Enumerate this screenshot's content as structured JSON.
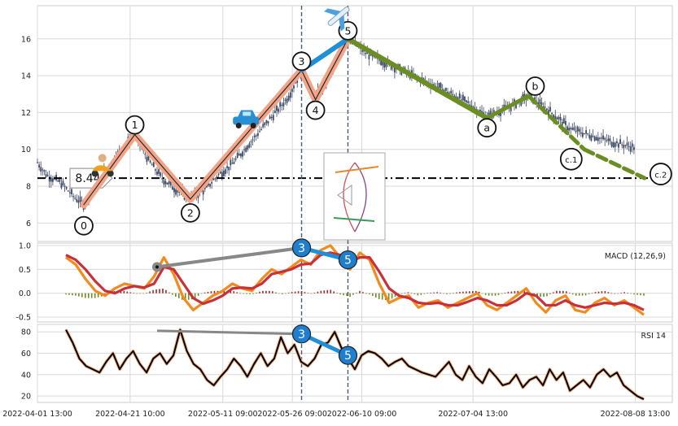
{
  "chart_data": [
    {
      "type": "candlestick",
      "panel": "price",
      "ylim": [
        5,
        17.8
      ],
      "yticks": [
        6,
        8,
        10,
        12,
        14,
        16
      ],
      "price_line": {
        "value": 8.44,
        "label": "8.44"
      },
      "close_series": [
        {
          "date": "2022-04-01",
          "close": 9.3
        },
        {
          "date": "2022-04-03",
          "close": 8.6
        },
        {
          "date": "2022-04-06",
          "close": 8.2
        },
        {
          "date": "2022-04-09",
          "close": 7.4
        },
        {
          "date": "2022-04-11",
          "close": 7.0
        },
        {
          "date": "2022-04-14",
          "close": 8.3
        },
        {
          "date": "2022-04-17",
          "close": 9.3
        },
        {
          "date": "2022-04-20",
          "close": 10.3
        },
        {
          "date": "2022-04-22",
          "close": 10.8
        },
        {
          "date": "2022-04-25",
          "close": 9.4
        },
        {
          "date": "2022-04-28",
          "close": 8.4
        },
        {
          "date": "2022-05-01",
          "close": 7.8
        },
        {
          "date": "2022-05-04",
          "close": 7.3
        },
        {
          "date": "2022-05-07",
          "close": 7.8
        },
        {
          "date": "2022-05-10",
          "close": 8.6
        },
        {
          "date": "2022-05-13",
          "close": 9.2
        },
        {
          "date": "2022-05-16",
          "close": 10.1
        },
        {
          "date": "2022-05-19",
          "close": 11.0
        },
        {
          "date": "2022-05-22",
          "close": 11.9
        },
        {
          "date": "2022-05-25",
          "close": 12.8
        },
        {
          "date": "2022-05-28",
          "close": 14.3
        },
        {
          "date": "2022-05-31",
          "close": 12.8
        },
        {
          "date": "2022-06-04",
          "close": 14.4
        },
        {
          "date": "2022-06-07",
          "close": 16.0
        },
        {
          "date": "2022-06-11",
          "close": 15.2
        },
        {
          "date": "2022-06-16",
          "close": 14.6
        },
        {
          "date": "2022-06-22",
          "close": 13.9
        },
        {
          "date": "2022-06-28",
          "close": 13.2
        },
        {
          "date": "2022-07-03",
          "close": 12.5
        },
        {
          "date": "2022-07-07",
          "close": 11.8
        },
        {
          "date": "2022-07-12",
          "close": 12.3
        },
        {
          "date": "2022-07-16",
          "close": 12.9
        },
        {
          "date": "2022-07-20",
          "close": 12.2
        },
        {
          "date": "2022-07-25",
          "close": 11.1
        },
        {
          "date": "2022-07-29",
          "close": 10.8
        },
        {
          "date": "2022-08-03",
          "close": 10.4
        },
        {
          "date": "2022-08-08",
          "close": 10.1
        }
      ],
      "wave_points": [
        {
          "label": "0",
          "date": "2022-04-11",
          "price": 7.0
        },
        {
          "label": "1",
          "date": "2022-04-22",
          "price": 10.8
        },
        {
          "label": "2",
          "date": "2022-05-04",
          "price": 7.3
        },
        {
          "label": "3",
          "date": "2022-05-28",
          "price": 14.3
        },
        {
          "label": "4",
          "date": "2022-05-31",
          "price": 12.7
        },
        {
          "label": "5",
          "date": "2022-06-07",
          "price": 16.0
        },
        {
          "label": "a",
          "date": "2022-07-07",
          "price": 11.7
        },
        {
          "label": "b",
          "date": "2022-07-16",
          "price": 12.9
        },
        {
          "label": "c.1",
          "date": "2022-07-28",
          "price": 10.0
        },
        {
          "label": "c.2",
          "date": "2022-08-10",
          "price": 8.44
        }
      ],
      "vertical_markers": [
        "2022-05-28",
        "2022-06-07"
      ],
      "icons": [
        "scooter-icon",
        "car-icon",
        "airplane-icon"
      ]
    },
    {
      "type": "line",
      "panel": "macd",
      "label": "MACD (12,26,9)",
      "ylim": [
        -0.6,
        1.05
      ],
      "yticks": [
        -0.5,
        0.0,
        0.5,
        1.0
      ],
      "ytick_labels": [
        "-0.5",
        "0.0",
        "0.5",
        "1.0"
      ],
      "divergence_points": [
        {
          "label": "3",
          "date": "2022-05-28",
          "value": 0.95
        },
        {
          "label": "5",
          "date": "2022-06-07",
          "value": 0.7
        }
      ],
      "series": [
        {
          "color": "#f28a1c",
          "values": [
            0.75,
            0.6,
            0.3,
            0.05,
            -0.05,
            0.1,
            0.2,
            0.15,
            0.1,
            0.35,
            0.75,
            0.4,
            -0.1,
            -0.35,
            -0.2,
            -0.05,
            0.05,
            0.2,
            0.1,
            0.05,
            0.3,
            0.5,
            0.4,
            0.55,
            0.7,
            0.6,
            0.9,
            1.0,
            0.75,
            0.5,
            0.85,
            0.7,
            0.2,
            -0.2,
            -0.1,
            -0.05,
            -0.3,
            -0.2,
            -0.15,
            -0.3,
            -0.2,
            -0.1,
            0.0,
            -0.25,
            -0.35,
            -0.2,
            -0.05,
            0.1,
            -0.2,
            -0.4,
            -0.15,
            -0.05,
            -0.35,
            -0.4,
            -0.2,
            -0.1,
            -0.25,
            -0.15,
            -0.3,
            -0.45
          ]
        },
        {
          "color": "#c8303a",
          "values": [
            0.8,
            0.7,
            0.5,
            0.25,
            0.05,
            0.0,
            0.1,
            0.15,
            0.12,
            0.2,
            0.55,
            0.5,
            0.2,
            -0.1,
            -0.22,
            -0.15,
            -0.05,
            0.1,
            0.12,
            0.1,
            0.2,
            0.4,
            0.45,
            0.5,
            0.6,
            0.62,
            0.8,
            0.85,
            0.8,
            0.65,
            0.75,
            0.75,
            0.45,
            0.1,
            -0.05,
            -0.1,
            -0.2,
            -0.22,
            -0.2,
            -0.25,
            -0.25,
            -0.18,
            -0.1,
            -0.15,
            -0.25,
            -0.25,
            -0.15,
            0.0,
            -0.05,
            -0.25,
            -0.25,
            -0.15,
            -0.25,
            -0.3,
            -0.25,
            -0.2,
            -0.22,
            -0.2,
            -0.25,
            -0.35
          ]
        }
      ]
    },
    {
      "type": "line",
      "panel": "rsi",
      "label": "RSI 14",
      "ylim": [
        14,
        87
      ],
      "yticks": [
        20,
        40,
        60,
        80
      ],
      "divergence_points": [
        {
          "label": "3",
          "date": "2022-05-28",
          "value": 78
        },
        {
          "label": "5",
          "date": "2022-06-07",
          "value": 58
        }
      ],
      "series": [
        {
          "color": "#000000",
          "values": [
            82,
            70,
            55,
            48,
            45,
            42,
            52,
            60,
            45,
            55,
            62,
            50,
            42,
            55,
            60,
            50,
            58,
            82,
            62,
            50,
            45,
            35,
            30,
            38,
            45,
            55,
            48,
            38,
            50,
            60,
            48,
            55,
            75,
            60,
            68,
            52,
            48,
            55,
            68,
            70,
            80,
            65,
            55,
            45,
            58,
            62,
            60,
            55,
            48,
            52,
            55,
            48,
            45,
            42,
            40,
            38,
            45,
            52,
            40,
            35,
            48,
            38,
            32,
            45,
            38,
            30,
            32,
            40,
            28,
            35,
            38,
            30,
            45,
            35,
            42,
            25,
            30,
            35,
            28,
            40,
            45,
            38,
            42,
            30,
            25,
            20,
            17
          ]
        }
      ]
    }
  ],
  "x_axis": {
    "tick_labels": [
      "2022-04-01 13:00",
      "2022-04-21 10:00",
      "2022-05-11 09:00",
      "2022-05-26 09:00",
      "2022-06-10 09:00",
      "2022-07-04 13:00",
      "2022-08-08 13:00"
    ],
    "tick_dates": [
      "2022-04-01",
      "2022-04-21",
      "2022-05-11",
      "2022-05-26",
      "2022-06-10",
      "2022-07-04",
      "2022-08-08"
    ]
  },
  "colors": {
    "grid": "#d9d9d9",
    "candle": "#3c4a63",
    "wave_up": "#f2a488",
    "wave_link": "#1f8fd6",
    "wave_down": "#6b8e23",
    "price_line": "#000000",
    "marker_line": "#4a5a78"
  }
}
